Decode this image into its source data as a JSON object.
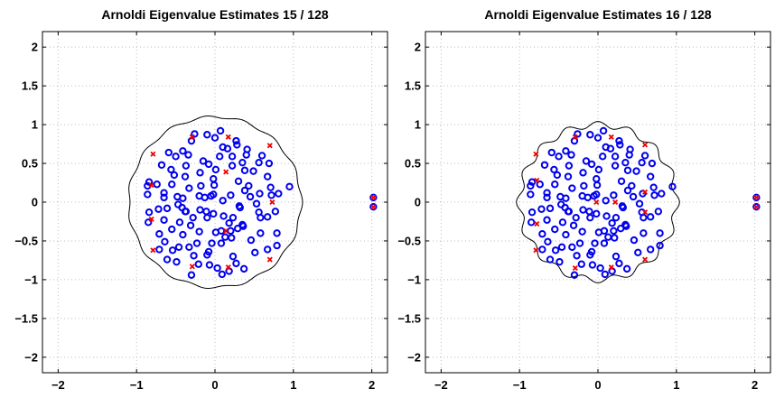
{
  "chart_data": [
    {
      "type": "scatter",
      "title": "Arnoldi Eigenvalue Estimates 15 / 128",
      "xlabel": "",
      "ylabel": "",
      "xlim": [
        -2.2,
        2.2
      ],
      "ylim": [
        -2.2,
        2.2
      ],
      "xticks": [
        -2,
        -1,
        0,
        1,
        2
      ],
      "yticks": [
        -2,
        -1.5,
        -1,
        -0.5,
        0,
        0.5,
        1,
        1.5,
        2
      ],
      "xtick_labels": [
        "−2",
        "−1",
        "0",
        "1",
        "2"
      ],
      "ytick_labels": [
        "−2",
        "−1.5",
        "−1",
        "−0.5",
        "0",
        "0.5",
        "1",
        "1.5",
        "2"
      ],
      "grid": true,
      "boundary_curve": {
        "color": "#000000",
        "radius": 1.1,
        "wiggle_amplitude": 0.015,
        "wiggle_frequency": 15,
        "points": 360
      },
      "series": [
        {
          "marker": "circle",
          "color": "#0000ee",
          "disk_center": [
            0,
            0
          ],
          "disk_radius": 1.0,
          "x": [
            -0.3,
            0.18,
            -0.07,
            0.09,
            -0.85,
            0.37,
            -0.61,
            -0.3,
            0.41,
            -0.84,
            0.07,
            0.81,
            -0.68,
            -0.59,
            0.6,
            -0.49,
            0.51,
            0.03,
            -0.21,
            0.27,
            -0.1,
            -0.04,
            -0.84,
            0.72,
            -0.5,
            0.95,
            -0.65,
            -0.54,
            0.43,
            -0.37,
            0.1,
            0.38,
            -0.45,
            0.23,
            -0.55,
            -0.02,
            0.01,
            -0.46,
            0.2,
            -0.23,
            0.77,
            -0.1,
            -0.01,
            0.21,
            -0.33,
            0.71,
            -0.18,
            0.67,
            -0.74,
            0.67,
            -0.05,
            -0.65,
            -0.1,
            0.08,
            0.16,
            -0.71,
            0.57,
            -0.11,
            0.32,
            -0.37,
            -0.19,
            0.29,
            -0.26,
            -0.2,
            0.35,
            -0.08,
            0.06,
            -0.61,
            -0.33,
            -0.28,
            0.67,
            0.45,
            0.18,
            0.69,
            -0.65,
            -0.08,
            0.46,
            0.38,
            0.22,
            -0.72,
            -0.86,
            0.79,
            -0.34,
            -0.2,
            -0.19,
            0.4,
            0.56,
            0.1,
            0.01,
            -0.41,
            -0.31,
            0.36,
            -0.38,
            0.79,
            0.13,
            0.2,
            0.53,
            -0.38,
            0.58,
            0.35,
            0.11,
            0.56,
            -0.02,
            -0.15,
            -0.27,
            0.0,
            -0.56,
            -0.52,
            -0.48,
            0.49,
            -0.71,
            0.28,
            -0.47,
            0.22,
            -0.42,
            0.27,
            0.31,
            -0.02,
            0.08,
            -0.64,
            0.3,
            -0.41,
            -0.41,
            -0.55,
            0.58,
            -0.13,
            0.23,
            -0.86,
            2.02,
            2.02
          ],
          "y": [
            -0.94,
            -0.89,
            -0.81,
            -0.93,
            -0.26,
            -0.86,
            -0.74,
            0.79,
            0.68,
            -0.13,
            0.92,
            0.11,
            0.48,
            0.64,
            0.6,
            -0.77,
            -0.65,
            -0.85,
            -0.8,
            -0.79,
            0.87,
            -0.53,
            0.26,
            0.09,
            0.59,
            0.2,
            0.06,
            -0.62,
            0.21,
            0.47,
            0.71,
            0.41,
            -0.26,
            -0.7,
            0.23,
            0.3,
            0.42,
            -0.58,
            0.09,
            -0.53,
            -0.12,
            -0.2,
            0.22,
            -0.46,
            -0.58,
            0.19,
            0.21,
            0.33,
            0.23,
            -0.19,
            0.08,
            -0.23,
            -0.68,
            -0.53,
            0.69,
            -0.41,
            0.11,
            -0.12,
            -0.07,
            -0.12,
            0.38,
            -0.34,
            0.88,
            -0.38,
            0.51,
            -0.64,
            0.59,
            -0.08,
            0.18,
            -0.2,
            -0.61,
            0.07,
            -0.27,
            0.5,
            0.12,
            0.49,
            -0.49,
            0.15,
            0.59,
            -0.09,
            0.1,
            -0.56,
            0.61,
            0.08,
            -0.1,
            0.61,
            0.51,
            0.02,
            -0.39,
            0.05,
            -0.3,
            -0.31,
            0.33,
            -0.4,
            -0.45,
            -0.37,
            -0.02,
            -0.12,
            -0.4,
            -0.29,
            -0.18,
            -0.13,
            -0.15,
            0.53,
            -0.69,
            0.83,
            0.42,
            0.35,
            0.07,
            0.4,
            -0.61,
            0.74,
            -0.03,
            0.47,
            -0.07,
            0.79,
            -0.05,
            0.1,
            -0.37,
            -0.51,
            0.27,
            0.66,
            -0.42,
            -0.35,
            -0.2,
            0.06,
            -0.2,
            0.21,
            0.06,
            -0.06
          ]
        },
        {
          "marker": "x",
          "color": "#ee0000",
          "x": [
            -0.29,
            0.17,
            0.7,
            0.7,
            0.17,
            -0.29,
            -0.79,
            -0.79,
            2.02,
            2.02,
            -0.81,
            -0.81,
            0.14,
            0.14,
            0.73
          ],
          "y": [
            0.84,
            0.84,
            0.73,
            -0.74,
            -0.84,
            -0.83,
            -0.62,
            0.62,
            0.06,
            -0.06,
            -0.22,
            0.22,
            0.39,
            -0.37,
            0.0
          ]
        }
      ]
    },
    {
      "type": "scatter",
      "title": "Arnoldi Eigenvalue Estimates 16 / 128",
      "xlabel": "",
      "ylabel": "",
      "xlim": [
        -2.2,
        2.2
      ],
      "ylim": [
        -2.2,
        2.2
      ],
      "xticks": [
        -2,
        -1,
        0,
        1,
        2
      ],
      "yticks": [
        -2,
        -1.5,
        -1,
        -0.5,
        0,
        0.5,
        1,
        1.5,
        2
      ],
      "xtick_labels": [
        "−2",
        "−1",
        "0",
        "1",
        "2"
      ],
      "ytick_labels": [
        "−2",
        "−1.5",
        "−1",
        "−0.5",
        "0",
        "0.5",
        "1",
        "1.5",
        "2"
      ],
      "grid": true,
      "boundary_curve": {
        "color": "#000000",
        "radius": 1.0,
        "wiggle_amplitude": 0.04,
        "wiggle_frequency": 16,
        "points": 360
      },
      "series": [
        {
          "marker": "circle",
          "color": "#0000ee",
          "disk_center": [
            0,
            0
          ],
          "disk_radius": 1.0,
          "x": [
            -0.3,
            0.18,
            -0.07,
            0.09,
            -0.85,
            0.37,
            -0.61,
            -0.3,
            0.41,
            -0.84,
            0.07,
            0.81,
            -0.68,
            -0.59,
            0.6,
            -0.49,
            0.51,
            0.03,
            -0.21,
            0.27,
            -0.1,
            -0.04,
            -0.84,
            0.72,
            -0.5,
            0.95,
            -0.65,
            -0.54,
            0.43,
            -0.37,
            0.1,
            0.38,
            -0.45,
            0.23,
            -0.55,
            -0.02,
            0.01,
            -0.46,
            0.2,
            -0.23,
            0.77,
            -0.1,
            -0.01,
            0.21,
            -0.33,
            0.71,
            -0.18,
            0.67,
            -0.74,
            0.67,
            -0.05,
            -0.65,
            -0.1,
            0.08,
            0.16,
            -0.71,
            0.57,
            -0.11,
            0.32,
            -0.37,
            -0.19,
            0.29,
            -0.26,
            -0.2,
            0.35,
            -0.08,
            0.06,
            -0.61,
            -0.33,
            -0.28,
            0.67,
            0.45,
            0.18,
            0.69,
            -0.65,
            -0.08,
            0.46,
            0.38,
            0.22,
            -0.72,
            -0.86,
            0.79,
            -0.34,
            -0.2,
            -0.19,
            0.4,
            0.56,
            0.1,
            0.01,
            -0.41,
            -0.31,
            0.36,
            -0.38,
            0.79,
            0.13,
            0.2,
            0.53,
            -0.38,
            0.58,
            0.35,
            0.11,
            0.56,
            -0.02,
            -0.15,
            -0.27,
            0.0,
            -0.56,
            -0.52,
            -0.48,
            0.49,
            -0.71,
            0.28,
            -0.47,
            0.22,
            -0.42,
            0.27,
            0.31,
            -0.02,
            0.08,
            -0.64,
            0.3,
            -0.41,
            -0.41,
            -0.55,
            0.58,
            -0.13,
            0.23,
            -0.86,
            2.02,
            2.02
          ],
          "y": [
            -0.94,
            -0.89,
            -0.81,
            -0.93,
            -0.26,
            -0.86,
            -0.74,
            0.79,
            0.68,
            -0.13,
            0.92,
            0.11,
            0.48,
            0.64,
            0.6,
            -0.77,
            -0.65,
            -0.85,
            -0.8,
            -0.79,
            0.87,
            -0.53,
            0.26,
            0.09,
            0.59,
            0.2,
            0.06,
            -0.62,
            0.21,
            0.47,
            0.71,
            0.41,
            -0.26,
            -0.7,
            0.23,
            0.3,
            0.42,
            -0.58,
            0.09,
            -0.53,
            -0.12,
            -0.2,
            0.22,
            -0.46,
            -0.58,
            0.19,
            0.21,
            0.33,
            0.23,
            -0.19,
            0.08,
            -0.23,
            -0.68,
            -0.53,
            0.69,
            -0.41,
            0.11,
            -0.12,
            -0.07,
            -0.12,
            0.38,
            -0.34,
            0.88,
            -0.38,
            0.51,
            -0.64,
            0.59,
            -0.08,
            0.18,
            -0.2,
            -0.61,
            0.07,
            -0.27,
            0.5,
            0.12,
            0.49,
            -0.49,
            0.15,
            0.59,
            -0.09,
            0.1,
            -0.56,
            0.61,
            0.08,
            -0.1,
            0.61,
            0.51,
            0.02,
            -0.39,
            0.05,
            -0.3,
            -0.31,
            0.33,
            -0.4,
            -0.45,
            -0.37,
            -0.02,
            -0.12,
            -0.4,
            -0.29,
            -0.18,
            -0.13,
            -0.15,
            0.53,
            -0.69,
            0.83,
            0.42,
            0.35,
            0.07,
            0.4,
            -0.61,
            0.74,
            -0.03,
            0.47,
            -0.07,
            0.79,
            -0.05,
            0.1,
            -0.37,
            -0.51,
            0.27,
            0.66,
            -0.42,
            -0.35,
            -0.2,
            0.06,
            -0.2,
            0.21,
            0.06,
            -0.06
          ]
        },
        {
          "marker": "x",
          "color": "#ee0000",
          "x": [
            -0.29,
            0.17,
            0.6,
            0.6,
            0.17,
            -0.29,
            -0.79,
            -0.79,
            2.02,
            2.02,
            -0.78,
            -0.78,
            -0.02,
            0.22,
            0.6,
            0.6
          ],
          "y": [
            0.84,
            0.84,
            0.74,
            -0.74,
            -0.84,
            -0.85,
            -0.62,
            0.62,
            0.06,
            -0.06,
            -0.28,
            0.28,
            0.0,
            0.0,
            0.13,
            -0.13
          ]
        }
      ]
    }
  ]
}
